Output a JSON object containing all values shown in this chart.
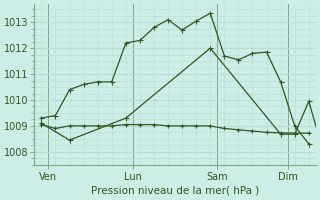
{
  "title": "Pression niveau de la mer( hPa )",
  "bg_color": "#cceee6",
  "grid_color": "#b8ddd6",
  "line_color": "#2d5a1e",
  "ylim": [
    1007.5,
    1013.7
  ],
  "yticks": [
    1008,
    1009,
    1010,
    1011,
    1012,
    1013
  ],
  "xtick_labels": [
    "Ven",
    "Lun",
    "Sam",
    "Dim"
  ],
  "xtick_positions": [
    0.5,
    6.5,
    12.5,
    17.5
  ],
  "vline_positions": [
    0.5,
    6.5,
    12.5,
    17.5
  ],
  "line1_x": [
    0,
    1,
    2,
    3,
    4,
    5,
    6,
    7,
    8,
    9,
    10,
    11,
    12,
    13,
    14,
    15,
    16,
    17,
    18,
    19
  ],
  "line1_y": [
    1009.3,
    1009.4,
    1010.4,
    1010.6,
    1010.7,
    1010.7,
    1012.2,
    1012.3,
    1012.8,
    1013.1,
    1012.7,
    1013.05,
    1013.35,
    1011.7,
    1011.55,
    1011.8,
    1011.85,
    1010.7,
    1009.0,
    1008.3
  ],
  "line2_x": [
    0,
    1,
    2,
    3,
    4,
    5,
    6,
    7,
    8,
    9,
    10,
    11,
    12,
    13,
    14,
    15,
    16,
    17,
    18,
    19
  ],
  "line2_y": [
    1009.05,
    1008.9,
    1009.0,
    1009.0,
    1009.0,
    1009.0,
    1009.05,
    1009.05,
    1009.05,
    1009.0,
    1009.0,
    1009.0,
    1009.0,
    1008.9,
    1008.85,
    1008.8,
    1008.75,
    1008.73,
    1008.72,
    1008.72
  ],
  "line3_x": [
    0,
    2,
    6,
    12,
    17,
    18,
    19,
    20
  ],
  "line3_y": [
    1009.1,
    1008.45,
    1009.3,
    1012.0,
    1008.68,
    1008.68,
    1009.95,
    1008.05
  ],
  "line1_start_x": [
    -0.5
  ],
  "line1_start_y": [
    1009.3
  ]
}
